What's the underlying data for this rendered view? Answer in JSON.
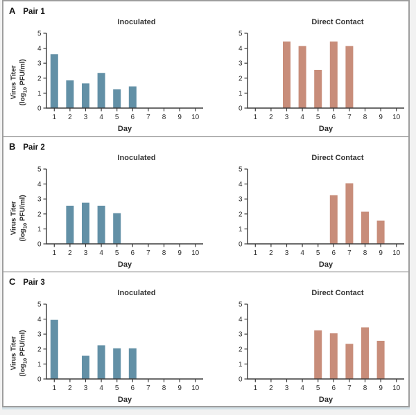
{
  "figure": {
    "panels": [
      {
        "letter": "A",
        "name": "Pair 1"
      },
      {
        "letter": "B",
        "name": "Pair 2"
      },
      {
        "letter": "C",
        "name": "Pair 3"
      }
    ],
    "colors": {
      "inoculated_bar": "#6290a6",
      "direct_contact_bar": "#c88d7a",
      "axis": "#3a3a3a",
      "frame_border": "#9e9e9e"
    }
  },
  "axis": {
    "xlabel": "Day",
    "ylabel_line1": "Virus Titer",
    "ylabel_pre": "(log",
    "ylabel_sub": "10",
    "ylabel_post": " PFU/ml)",
    "xticks": [
      1,
      2,
      3,
      4,
      5,
      6,
      7,
      8,
      9,
      10
    ],
    "yticks": [
      0,
      1,
      2,
      3,
      4,
      5
    ],
    "ylim": [
      0,
      5
    ],
    "grid": false,
    "legend": false
  },
  "chart_data": [
    {
      "type": "bar",
      "panel": "A Pair 1",
      "title": "Inoculated",
      "color": "#6290a6",
      "x": [
        1,
        2,
        3,
        4,
        5,
        6
      ],
      "values": [
        3.6,
        1.85,
        1.65,
        2.35,
        1.25,
        1.45
      ],
      "xlabel": "Day",
      "ylabel": "Virus Titer (log10 PFU/ml)",
      "ylim": [
        0,
        5
      ]
    },
    {
      "type": "bar",
      "panel": "A Pair 1",
      "title": "Direct Contact",
      "color": "#c88d7a",
      "x": [
        3,
        4,
        5,
        6,
        7
      ],
      "values": [
        4.45,
        4.15,
        2.55,
        4.45,
        4.15
      ],
      "xlabel": "Day",
      "ylabel": "Virus Titer (log10 PFU/ml)",
      "ylim": [
        0,
        5
      ]
    },
    {
      "type": "bar",
      "panel": "B Pair 2",
      "title": "Inoculated",
      "color": "#6290a6",
      "x": [
        2,
        3,
        4,
        5
      ],
      "values": [
        2.55,
        2.75,
        2.55,
        2.05
      ],
      "xlabel": "Day",
      "ylabel": "Virus Titer (log10 PFU/ml)",
      "ylim": [
        0,
        5
      ]
    },
    {
      "type": "bar",
      "panel": "B Pair 2",
      "title": "Direct Contact",
      "color": "#c88d7a",
      "x": [
        6,
        7,
        8,
        9
      ],
      "values": [
        3.25,
        4.05,
        2.15,
        1.55
      ],
      "xlabel": "Day",
      "ylabel": "Virus Titer (log10 PFU/ml)",
      "ylim": [
        0,
        5
      ]
    },
    {
      "type": "bar",
      "panel": "C Pair 3",
      "title": "Inoculated",
      "color": "#6290a6",
      "x": [
        1,
        3,
        4,
        5,
        6
      ],
      "values": [
        3.95,
        1.55,
        2.25,
        2.05,
        2.05
      ],
      "xlabel": "Day",
      "ylabel": "Virus Titer (log10 PFU/ml)",
      "ylim": [
        0,
        5
      ]
    },
    {
      "type": "bar",
      "panel": "C Pair 3",
      "title": "Direct Contact",
      "color": "#c88d7a",
      "x": [
        5,
        6,
        7,
        8,
        9
      ],
      "values": [
        3.25,
        3.05,
        2.35,
        3.45,
        2.55
      ],
      "xlabel": "Day",
      "ylabel": "Virus Titer (log10 PFU/ml)",
      "ylim": [
        0,
        5
      ]
    }
  ]
}
